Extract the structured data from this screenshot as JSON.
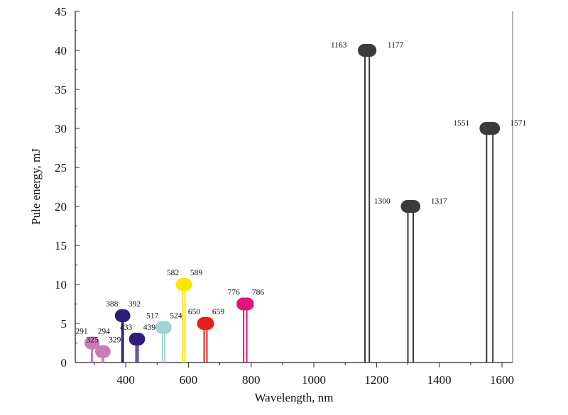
{
  "chart_data": {
    "type": "stem",
    "title": "",
    "xlabel": "Wavelength, nm",
    "ylabel": "Pule energy, mJ",
    "xlim": [
      239,
      1634
    ],
    "ylim": [
      0,
      45
    ],
    "xticks": [
      400,
      600,
      800,
      1000,
      1200,
      1400,
      1600
    ],
    "yticks": [
      0,
      5,
      10,
      15,
      20,
      25,
      30,
      35,
      40,
      45
    ],
    "grid": false,
    "series": [
      {
        "wavelengths": [
          291,
          294
        ],
        "energy": 2.5,
        "color": "#c97db6"
      },
      {
        "wavelengths": [
          325,
          329
        ],
        "energy": 1.4,
        "color": "#c97db6"
      },
      {
        "wavelengths": [
          388,
          392
        ],
        "energy": 6,
        "color": "#2f1c7c"
      },
      {
        "wavelengths": [
          433,
          439
        ],
        "energy": 3,
        "color": "#2f1c7c"
      },
      {
        "wavelengths": [
          517,
          524
        ],
        "energy": 4.5,
        "color": "#9fd4d3"
      },
      {
        "wavelengths": [
          582,
          589
        ],
        "energy": 10,
        "color": "#ffe600"
      },
      {
        "wavelengths": [
          650,
          659
        ],
        "energy": 5,
        "color": "#e2231a"
      },
      {
        "wavelengths": [
          776,
          786
        ],
        "energy": 7.5,
        "color": "#e2137b"
      },
      {
        "wavelengths": [
          1163,
          1177
        ],
        "energy": 40,
        "color": "#3b3b3b"
      },
      {
        "wavelengths": [
          1300,
          1317
        ],
        "energy": 20,
        "color": "#3b3b3b"
      },
      {
        "wavelengths": [
          1551,
          1571
        ],
        "energy": 30,
        "color": "#3b3b3b"
      }
    ]
  }
}
